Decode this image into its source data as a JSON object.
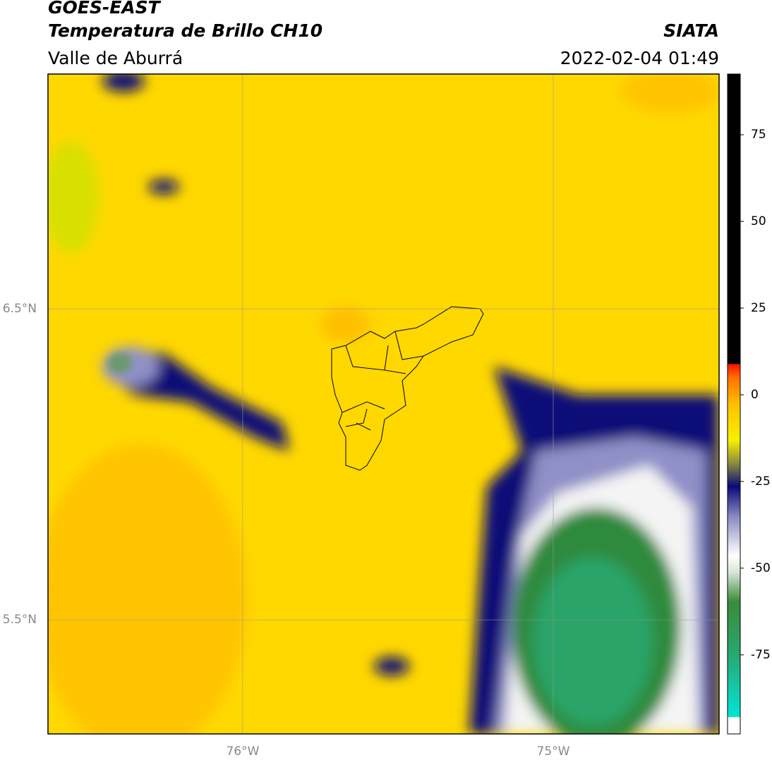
{
  "header": {
    "title": "GOES-EAST",
    "subtitle": "Temperatura de Brillo CH10",
    "region": "Valle de Aburrá",
    "source": "SIATA",
    "datetime": "2022-02-04 01:49"
  },
  "map": {
    "xlim": [
      -76.627,
      -74.466
    ],
    "ylim": [
      5.133,
      7.255
    ],
    "xticks": [
      {
        "value": -76,
        "label": "76°W"
      },
      {
        "value": -75,
        "label": "75°W"
      }
    ],
    "yticks": [
      {
        "value": 6.5,
        "label": "6.5°N"
      },
      {
        "value": 5.5,
        "label": "5.5°N"
      }
    ],
    "grid": true
  },
  "colorbar": {
    "lim": [
      -97.8,
      92.5
    ],
    "ticks": [
      -75,
      -50,
      -25,
      0,
      25,
      50,
      75
    ]
  }
}
